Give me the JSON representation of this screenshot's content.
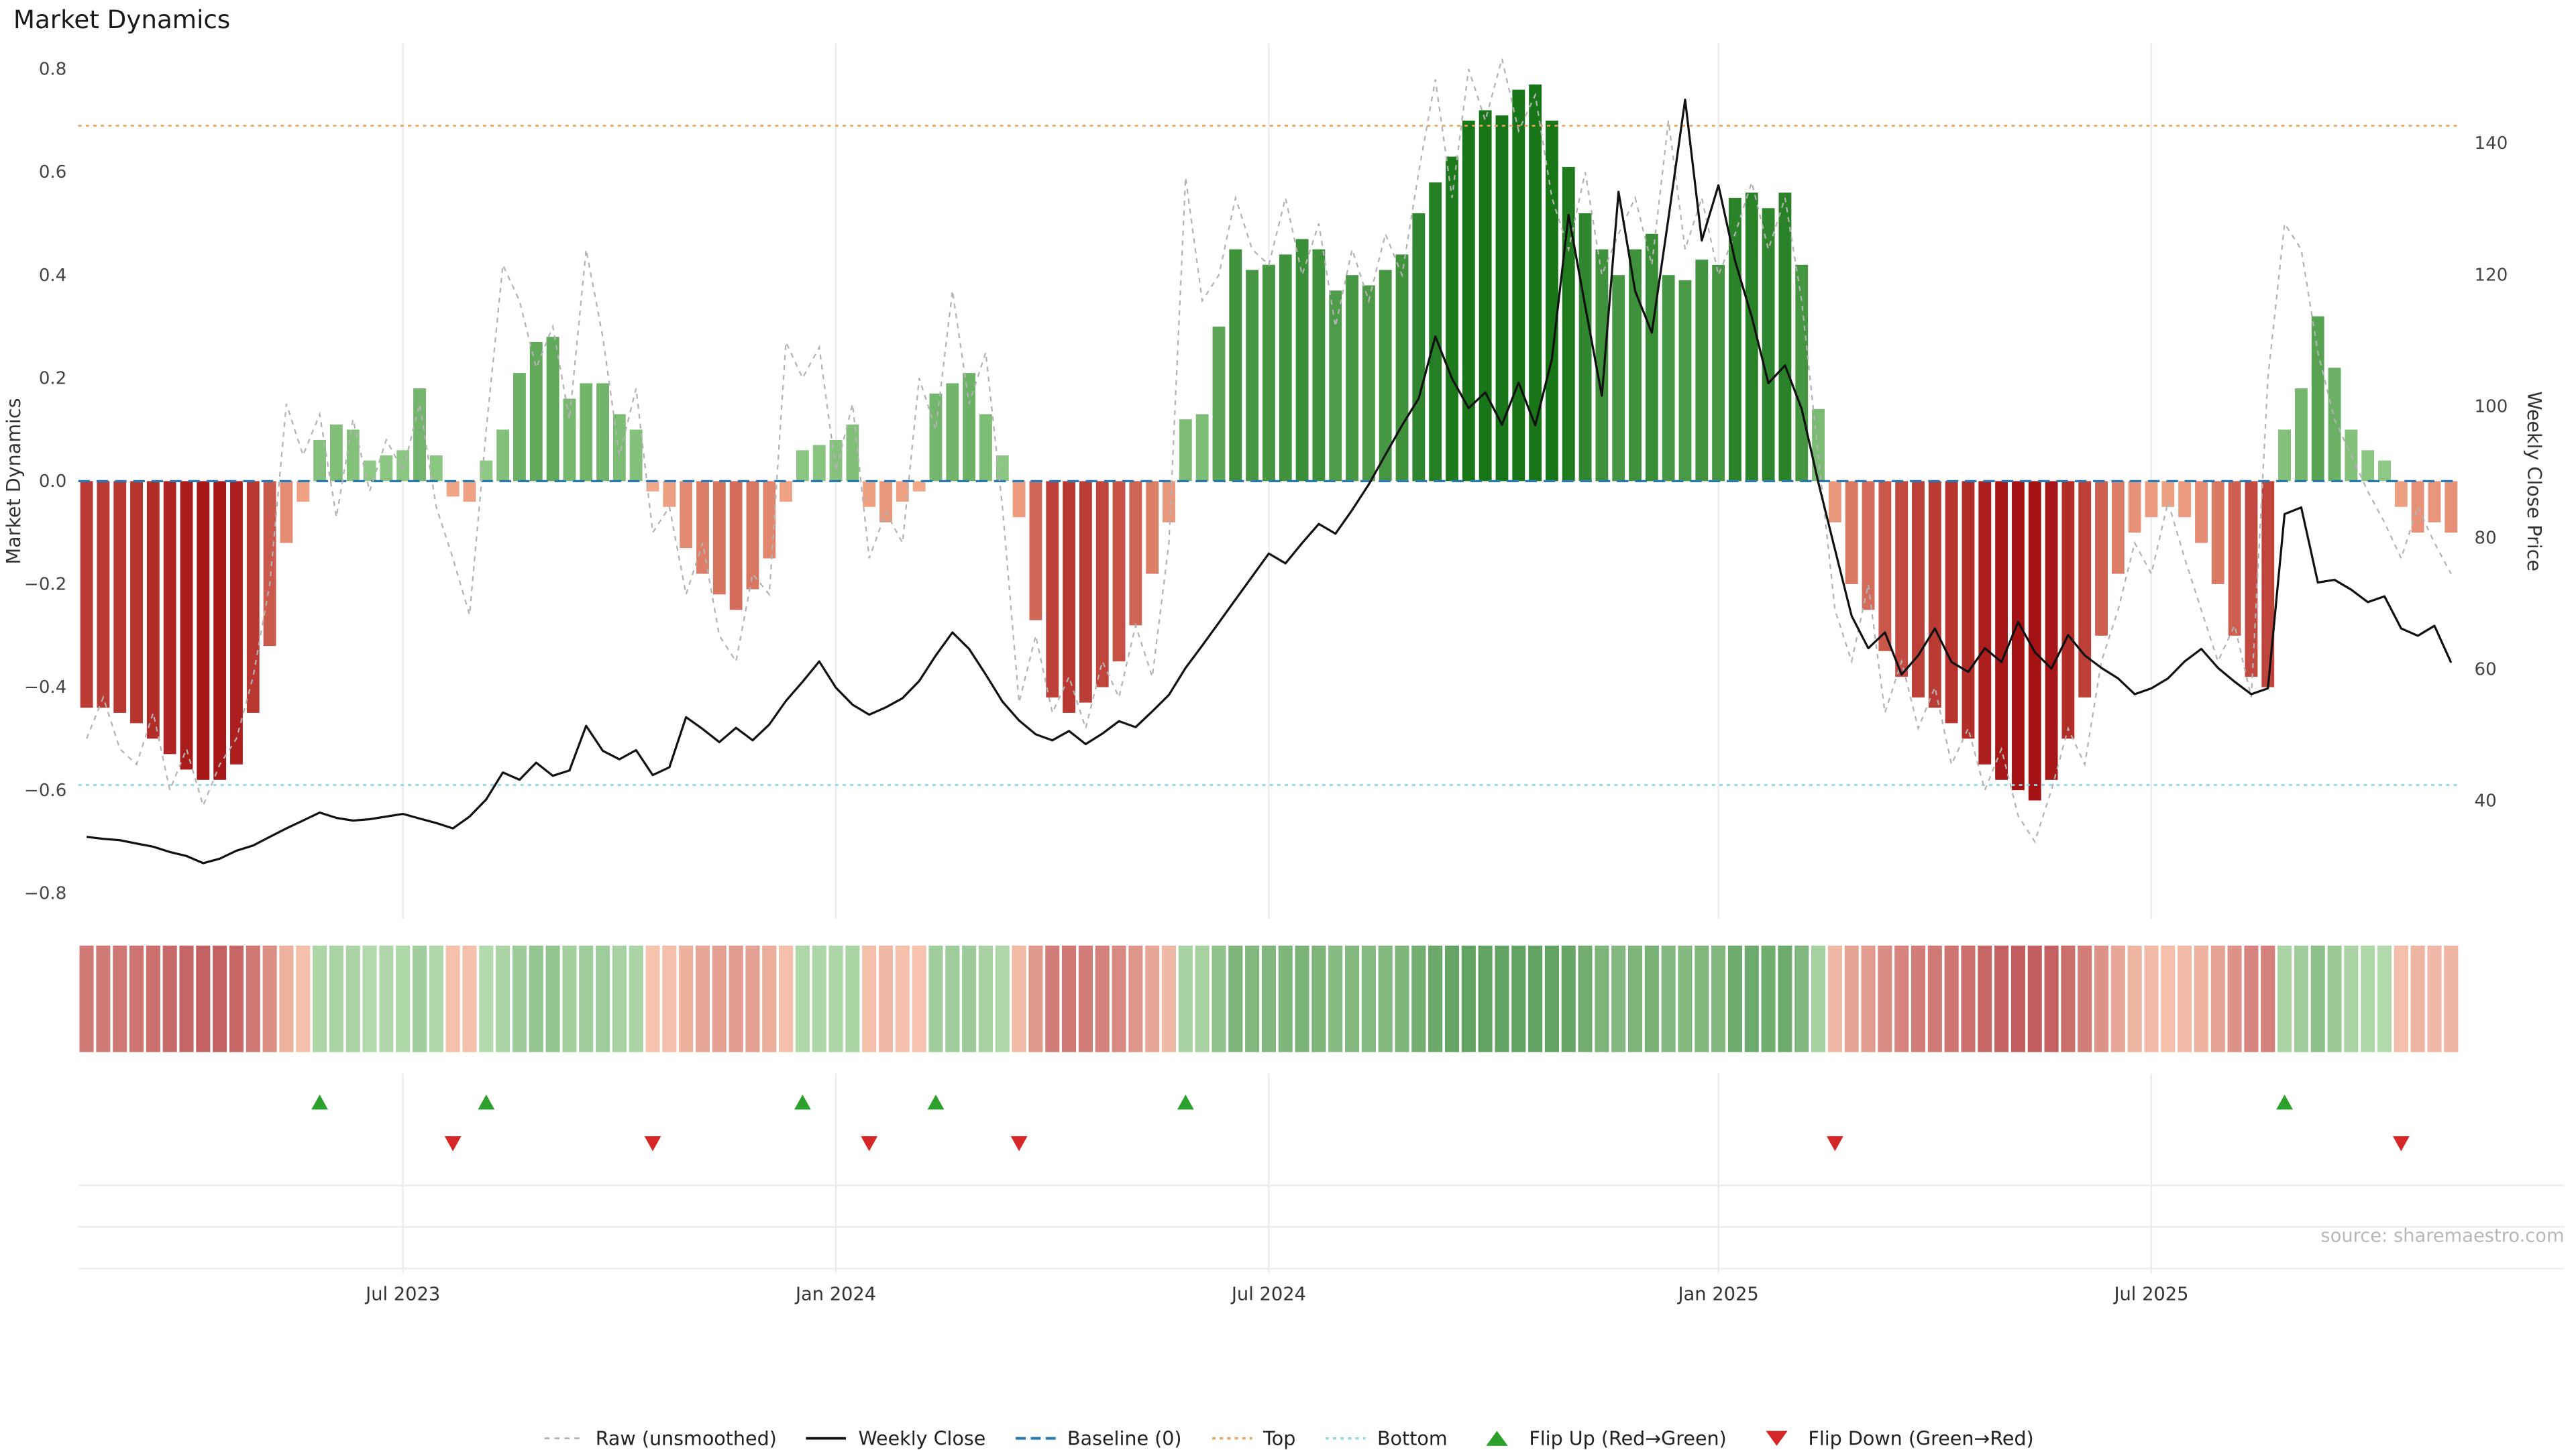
{
  "title": "Market Dynamics",
  "source": "source: sharemaestro.com",
  "axes": {
    "left_label": "Market Dynamics",
    "right_label": "Weekly Close Price",
    "left_ticks": [
      0.8,
      0.6,
      0.4,
      0.2,
      0.0,
      -0.2,
      -0.4,
      -0.6,
      -0.8
    ],
    "right_ticks": [
      140,
      120,
      100,
      80,
      60,
      40
    ],
    "x_tick_labels": [
      "Jul 2023",
      "Jan 2024",
      "Jul 2024",
      "Jan 2025",
      "Jul 2025"
    ]
  },
  "colors": {
    "bar_positive_dark": "#187618",
    "bar_positive_light": "#96cd8c",
    "bar_negative_dark": "#a51214",
    "bar_negative_light": "#f4ac8c",
    "baseline": "#2878b4",
    "top_line": "#e8a35c",
    "bottom_line": "#8fd6e8",
    "raw_line": "#b3b3b3",
    "close_line": "#111111",
    "flip_up": "#2ca02c",
    "flip_down": "#d62728",
    "grid": "#ececec",
    "tick_text": "#444444",
    "xtick_text": "#333333",
    "source_text": "#b8b8b8"
  },
  "legend": [
    {
      "label": "Raw (unsmoothed)",
      "swatch": "line-dashed-gray"
    },
    {
      "label": "Weekly Close",
      "swatch": "line-solid-black"
    },
    {
      "label": "Baseline (0)",
      "swatch": "line-dashed-blue"
    },
    {
      "label": "Top",
      "swatch": "line-dotted-orange"
    },
    {
      "label": "Bottom",
      "swatch": "line-dotted-cyan"
    },
    {
      "label": "Flip Up (Red→Green)",
      "swatch": "triangle-up-green"
    },
    {
      "label": "Flip Down (Green→Red)",
      "swatch": "triangle-down-red"
    }
  ],
  "chart_data": {
    "type": "combo: weekly bar oscillator (left axis) + dashed raw line (left axis) + price line (right axis) + heatmap strip + flip event markers",
    "n_weeks": 143,
    "x_tick_labels": [
      "Jul 2023",
      "Jan 2024",
      "Jul 2024",
      "Jan 2025",
      "Jul 2025"
    ],
    "x_tick_week_index": [
      19,
      45,
      71,
      98,
      124
    ],
    "left_axis_range": [
      -0.85,
      0.85
    ],
    "right_axis_range": [
      22,
      155
    ],
    "baseline": 0,
    "top_threshold": 0.69,
    "bottom_threshold": -0.59,
    "legend_position": "bottom-center",
    "grid": "light vertical gridlines at x ticks; light horizontal rules in marker panel",
    "series": [
      {
        "name": "Market Dynamics (smoothed bars)",
        "type": "bar",
        "axis": "left",
        "values": [
          -0.44,
          -0.44,
          -0.45,
          -0.47,
          -0.5,
          -0.53,
          -0.56,
          -0.58,
          -0.58,
          -0.55,
          -0.45,
          -0.32,
          -0.12,
          -0.04,
          0.08,
          0.11,
          0.1,
          0.04,
          0.05,
          0.06,
          0.18,
          0.05,
          -0.03,
          -0.04,
          0.04,
          0.1,
          0.21,
          0.27,
          0.28,
          0.16,
          0.19,
          0.19,
          0.13,
          0.1,
          -0.02,
          -0.05,
          -0.13,
          -0.18,
          -0.22,
          -0.25,
          -0.21,
          -0.15,
          -0.04,
          0.06,
          0.07,
          0.08,
          0.11,
          -0.05,
          -0.08,
          -0.04,
          -0.02,
          0.17,
          0.19,
          0.21,
          0.13,
          0.05,
          -0.07,
          -0.27,
          -0.42,
          -0.45,
          -0.43,
          -0.4,
          -0.35,
          -0.28,
          -0.18,
          -0.08,
          0.12,
          0.13,
          0.3,
          0.45,
          0.41,
          0.42,
          0.44,
          0.47,
          0.45,
          0.37,
          0.4,
          0.38,
          0.41,
          0.44,
          0.52,
          0.58,
          0.63,
          0.7,
          0.72,
          0.71,
          0.76,
          0.77,
          0.7,
          0.61,
          0.52,
          0.45,
          0.4,
          0.45,
          0.48,
          0.4,
          0.39,
          0.43,
          0.42,
          0.55,
          0.56,
          0.53,
          0.56,
          0.42,
          0.14,
          -0.08,
          -0.2,
          -0.25,
          -0.33,
          -0.38,
          -0.42,
          -0.44,
          -0.47,
          -0.5,
          -0.55,
          -0.58,
          -0.6,
          -0.62,
          -0.58,
          -0.5,
          -0.42,
          -0.3,
          -0.18,
          -0.1,
          -0.07,
          -0.05,
          -0.07,
          -0.12,
          -0.2,
          -0.3,
          -0.38,
          -0.4,
          0.1,
          0.18,
          0.32,
          0.22,
          0.1,
          0.06,
          0.04,
          -0.05,
          -0.1,
          -0.08,
          -0.1
        ]
      },
      {
        "name": "Raw (unsmoothed)",
        "type": "line-dashed",
        "axis": "left",
        "values": [
          -0.5,
          -0.42,
          -0.52,
          -0.55,
          -0.45,
          -0.6,
          -0.52,
          -0.63,
          -0.55,
          -0.5,
          -0.38,
          -0.2,
          0.15,
          0.05,
          0.13,
          -0.07,
          0.12,
          -0.02,
          0.08,
          0.02,
          0.15,
          -0.05,
          -0.15,
          -0.26,
          0.1,
          0.42,
          0.35,
          0.22,
          0.3,
          0.12,
          0.45,
          0.28,
          0.05,
          0.18,
          -0.1,
          -0.05,
          -0.22,
          -0.12,
          -0.3,
          -0.35,
          -0.18,
          -0.22,
          0.27,
          0.2,
          0.26,
          0.02,
          0.15,
          -0.15,
          -0.06,
          -0.12,
          0.2,
          0.1,
          0.37,
          0.15,
          0.25,
          -0.05,
          -0.43,
          -0.3,
          -0.45,
          -0.38,
          -0.48,
          -0.35,
          -0.42,
          -0.28,
          -0.38,
          -0.12,
          0.59,
          0.35,
          0.4,
          0.55,
          0.45,
          0.42,
          0.55,
          0.4,
          0.5,
          0.3,
          0.45,
          0.35,
          0.48,
          0.4,
          0.6,
          0.78,
          0.55,
          0.8,
          0.7,
          0.82,
          0.68,
          0.75,
          0.55,
          0.45,
          0.6,
          0.4,
          0.48,
          0.55,
          0.42,
          0.7,
          0.45,
          0.55,
          0.4,
          0.48,
          0.58,
          0.45,
          0.55,
          0.35,
          0.05,
          -0.25,
          -0.35,
          -0.2,
          -0.45,
          -0.35,
          -0.48,
          -0.4,
          -0.55,
          -0.48,
          -0.6,
          -0.52,
          -0.65,
          -0.7,
          -0.6,
          -0.48,
          -0.55,
          -0.35,
          -0.25,
          -0.12,
          -0.18,
          -0.04,
          -0.15,
          -0.25,
          -0.35,
          -0.28,
          -0.42,
          0.2,
          0.5,
          0.45,
          0.25,
          0.12,
          0.05,
          -0.02,
          -0.08,
          -0.15,
          -0.05,
          -0.12,
          -0.18
        ]
      },
      {
        "name": "Weekly Close",
        "type": "line",
        "axis": "right",
        "values": [
          34.5,
          34.2,
          34.0,
          33.5,
          33.0,
          32.2,
          31.6,
          30.5,
          31.2,
          32.4,
          33.2,
          34.5,
          35.8,
          37.0,
          38.2,
          37.4,
          37.0,
          37.2,
          37.6,
          38.0,
          37.3,
          36.6,
          35.8,
          37.6,
          40.2,
          44.3,
          43.2,
          45.8,
          43.8,
          44.6,
          51.4,
          47.6,
          46.3,
          47.7,
          43.9,
          45.1,
          52.7,
          50.9,
          48.9,
          51.1,
          49.2,
          51.6,
          55.2,
          58.1,
          61.2,
          57.2,
          54.6,
          53.1,
          54.2,
          55.6,
          58.2,
          62.1,
          65.6,
          63.1,
          59.2,
          55.1,
          52.2,
          50.1,
          49.2,
          50.6,
          48.6,
          50.2,
          52.1,
          51.2,
          53.6,
          56.1,
          60.2,
          63.6,
          67.1,
          70.6,
          74.1,
          77.6,
          76.1,
          79.2,
          82.1,
          80.6,
          84.2,
          88.1,
          92.6,
          97.1,
          101.2,
          110.6,
          104.2,
          99.7,
          102.1,
          97.2,
          103.6,
          97.1,
          107.2,
          129.1,
          115.2,
          101.6,
          132.6,
          117.5,
          111.2,
          128.6,
          146.6,
          125.2,
          133.6,
          122.1,
          113.6,
          103.5,
          106.2,
          99.6,
          88.4,
          78.2,
          68.1,
          63.2,
          65.6,
          59.2,
          62.1,
          66.2,
          61.1,
          59.6,
          63.2,
          61.1,
          67.2,
          62.6,
          60.1,
          65.2,
          62.1,
          60.2,
          58.6,
          56.2,
          57.1,
          58.6,
          61.2,
          63.1,
          60.2,
          58.1,
          56.2,
          57.1,
          83.6,
          84.6,
          73.2,
          73.6,
          72.1,
          70.2,
          71.1,
          66.2,
          65.1,
          66.6,
          61.0
        ]
      }
    ],
    "heatmap": "same weekly oscillator values rendered as a pastel red-white-green color strip below the main panel",
    "flip_up_weeks": [
      14,
      24,
      43,
      51,
      66,
      132
    ],
    "flip_down_weeks": [
      22,
      34,
      47,
      56,
      105,
      139
    ]
  }
}
